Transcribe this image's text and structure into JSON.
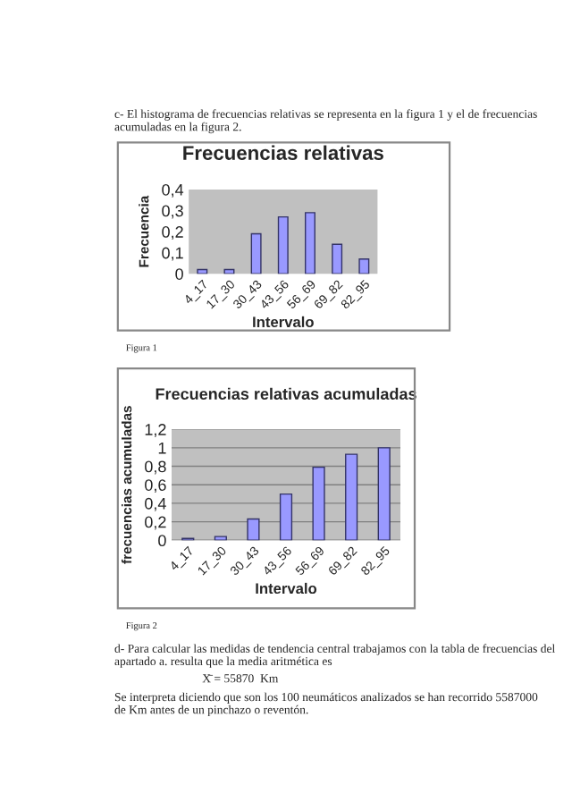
{
  "chart_data": [
    {
      "type": "bar",
      "title": "Frecuencias relativas",
      "xlabel": "Intervalo",
      "ylabel": "Frecuencia",
      "categories": [
        "4_17",
        "17_30",
        "30_43",
        "43_56",
        "56_69",
        "69_82",
        "82_95"
      ],
      "values": [
        0.02,
        0.02,
        0.19,
        0.27,
        0.29,
        0.14,
        0.07
      ],
      "color": "#9999ff",
      "ylim": [
        0,
        0.4
      ],
      "yticks": [
        0,
        {
          "value": 0.1,
          "label": "0,1"
        },
        {
          "value": 0.2,
          "label": "0,2"
        },
        {
          "value": 0.3,
          "label": "0,3"
        },
        {
          "value": 0.4,
          "label": "0,4"
        }
      ],
      "grid": false,
      "legend": false,
      "annotations": [
        "c- El histograma de frecuencias relativas se representa en la figura 1 y el de frecuencias acumuladas en la figura 2.",
        "Figura 1"
      ]
    },
    {
      "type": "bar",
      "title": "Frecuencias relativas acumuladas",
      "xlabel": "Intervalo",
      "ylabel": "frecuencias acumuladas",
      "categories": [
        "4_17",
        "17_30",
        "30_43",
        "43_56",
        "56_69",
        "69_82",
        "82_95"
      ],
      "values": [
        0.02,
        0.04,
        0.23,
        0.5,
        0.79,
        0.93,
        1.0
      ],
      "color": "#9999ff",
      "ylim": [
        0,
        1.2
      ],
      "yticks": [
        0,
        {
          "value": 0.2,
          "label": "0,2"
        },
        {
          "value": 0.4,
          "label": "0,4"
        },
        {
          "value": 0.6,
          "label": "0,6"
        },
        {
          "value": 0.8,
          "label": "0,8"
        },
        1,
        {
          "value": 1.2,
          "label": "1,2"
        }
      ],
      "grid": "y",
      "legend": false,
      "annotations": [
        "Figura 2",
        "d- Para calcular las medidas de tendencia central trabajamos con la tabla de frecuencias del apartado a. resulta que la media aritmética es",
        "X̄ = 55870  Km",
        "Se interpreta diciendo que son los 100 neumáticos analizados se han recorrido 5587000 de Km antes de un pinchazo o reventón."
      ]
    }
  ]
}
